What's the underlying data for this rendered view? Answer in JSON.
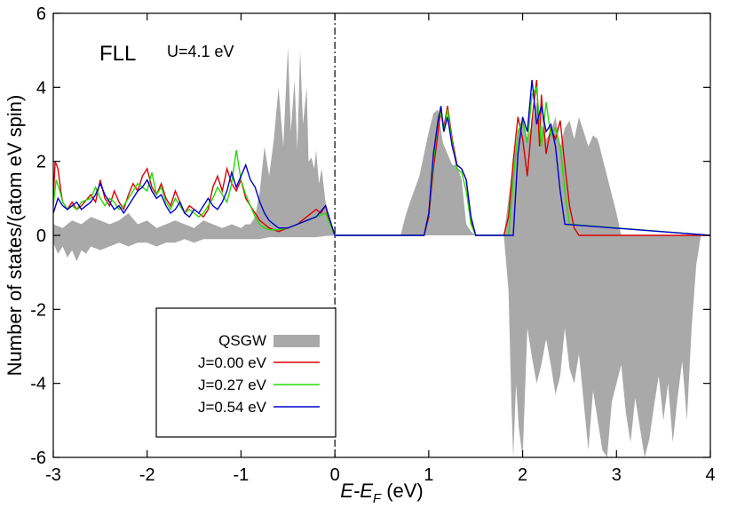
{
  "chart_data": {
    "type": "line",
    "title": "",
    "xlabel_main": "E-E",
    "xlabel_sub": "F",
    "xlabel_unit": " (eV)",
    "ylabel": "Number of states/(atom eV spin)",
    "xlim": [
      -3,
      4
    ],
    "ylim": [
      -6,
      6
    ],
    "xticks": [
      -3,
      -2,
      -1,
      0,
      1,
      2,
      3,
      4
    ],
    "yticks": [
      -6,
      -4,
      -2,
      0,
      2,
      4,
      6
    ],
    "annotations": {
      "method": "FLL",
      "param": "U=4.1 eV"
    },
    "fermi_line_x": 0,
    "legend_position": "bottom-left",
    "series": [
      {
        "name": "QSGW",
        "kind": "area",
        "color": "#a9a9a9",
        "upper": {
          "x": [
            -3.0,
            -2.9,
            -2.8,
            -2.7,
            -2.6,
            -2.5,
            -2.4,
            -2.3,
            -2.2,
            -2.1,
            -2.0,
            -1.9,
            -1.8,
            -1.7,
            -1.6,
            -1.5,
            -1.4,
            -1.3,
            -1.2,
            -1.1,
            -1.0,
            -0.95,
            -0.9,
            -0.85,
            -0.8,
            -0.75,
            -0.7,
            -0.65,
            -0.6,
            -0.55,
            -0.5,
            -0.47,
            -0.43,
            -0.4,
            -0.37,
            -0.34,
            -0.3,
            -0.28,
            -0.25,
            -0.22,
            -0.2,
            -0.17,
            -0.14,
            -0.1,
            -0.05,
            0.0,
            0.7,
            0.75,
            0.8,
            0.9,
            1.0,
            1.05,
            1.1,
            1.15,
            1.2,
            1.25,
            1.3,
            1.35,
            1.4,
            1.45,
            1.5,
            1.8,
            1.85,
            1.9,
            1.95,
            2.0,
            2.05,
            2.1,
            2.15,
            2.2,
            2.25,
            2.3,
            2.35,
            2.4,
            2.45,
            2.5,
            2.55,
            2.6,
            2.65,
            2.7,
            2.75,
            2.8,
            2.85,
            2.9,
            2.95,
            3.0,
            3.05,
            4.0
          ],
          "y": [
            0.3,
            0.2,
            0.4,
            0.3,
            0.5,
            0.4,
            0.3,
            0.4,
            0.6,
            0.3,
            0.4,
            0.2,
            0.3,
            0.4,
            0.3,
            0.2,
            0.4,
            0.3,
            0.2,
            0.3,
            0.2,
            0.3,
            0.3,
            0.5,
            1.2,
            2.4,
            1.6,
            2.6,
            4.0,
            2.4,
            5.1,
            2.8,
            4.2,
            2.3,
            5.0,
            3.0,
            4.0,
            2.0,
            2.1,
            1.8,
            2.3,
            1.4,
            1.8,
            0.9,
            0.4,
            0.0,
            0.0,
            0.5,
            0.9,
            1.6,
            2.8,
            3.3,
            3.4,
            2.5,
            2.2,
            1.9,
            1.9,
            1.5,
            0.3,
            0.1,
            0.0,
            0.0,
            1.0,
            2.0,
            2.8,
            3.2,
            2.6,
            3.0,
            3.6,
            3.0,
            2.6,
            2.8,
            3.2,
            2.4,
            2.9,
            3.1,
            2.6,
            3.2,
            2.8,
            2.4,
            2.7,
            2.6,
            2.1,
            1.6,
            1.1,
            0.6,
            0.0,
            0.0
          ]
        },
        "lower": {
          "x": [
            -3.0,
            -2.95,
            -2.9,
            -2.85,
            -2.8,
            -2.75,
            -2.7,
            -2.65,
            -2.6,
            -2.5,
            -2.4,
            -2.3,
            -2.2,
            -2.1,
            -2.0,
            -1.9,
            -1.8,
            -1.7,
            -1.6,
            -1.5,
            -1.4,
            -1.3,
            -1.2,
            -1.1,
            -1.0,
            -0.9,
            -0.8,
            -0.7,
            -0.6,
            -0.5,
            -0.4,
            -0.3,
            -0.2,
            -0.1,
            0.0,
            1.8,
            1.85,
            1.88,
            1.9,
            1.93,
            1.96,
            2.0,
            2.05,
            2.1,
            2.15,
            2.2,
            2.25,
            2.3,
            2.35,
            2.4,
            2.45,
            2.5,
            2.55,
            2.6,
            2.65,
            2.7,
            2.75,
            2.8,
            2.85,
            2.9,
            2.95,
            3.0,
            3.05,
            3.1,
            3.15,
            3.2,
            3.25,
            3.3,
            3.35,
            3.4,
            3.45,
            3.5,
            3.55,
            3.6,
            3.65,
            3.7,
            3.75,
            3.8,
            3.85,
            3.9,
            4.0
          ],
          "y": [
            -0.2,
            -0.5,
            -0.3,
            -0.6,
            -0.4,
            -0.7,
            -0.4,
            -0.5,
            -0.3,
            -0.4,
            -0.3,
            -0.2,
            -0.3,
            -0.2,
            -0.2,
            -0.3,
            -0.2,
            -0.2,
            -0.1,
            -0.2,
            -0.1,
            -0.1,
            -0.1,
            -0.1,
            -0.1,
            -0.1,
            -0.1,
            -0.05,
            -0.05,
            -0.05,
            -0.05,
            -0.05,
            -0.05,
            -0.02,
            0.0,
            0.0,
            -1.5,
            -4.5,
            -6.0,
            -4.0,
            -5.2,
            -6.0,
            -2.5,
            -3.3,
            -4.0,
            -3.5,
            -2.8,
            -3.5,
            -4.3,
            -3.8,
            -2.5,
            -3.6,
            -4.0,
            -3.2,
            -4.5,
            -5.8,
            -4.2,
            -5.0,
            -5.8,
            -6.0,
            -4.5,
            -4.0,
            -3.5,
            -4.8,
            -5.6,
            -4.4,
            -5.2,
            -6.0,
            -5.5,
            -4.6,
            -3.8,
            -5.0,
            -4.0,
            -5.6,
            -4.4,
            -3.4,
            -5.0,
            -2.5,
            -0.8,
            0.0,
            0.0
          ]
        }
      },
      {
        "name": "J=0.00 eV",
        "kind": "line",
        "color": "#dd0000",
        "x": [
          -3.0,
          -2.98,
          -2.95,
          -2.92,
          -2.9,
          -2.85,
          -2.8,
          -2.75,
          -2.7,
          -2.6,
          -2.55,
          -2.5,
          -2.45,
          -2.4,
          -2.35,
          -2.3,
          -2.25,
          -2.2,
          -2.15,
          -2.1,
          -2.05,
          -2.0,
          -1.95,
          -1.9,
          -1.85,
          -1.8,
          -1.75,
          -1.7,
          -1.65,
          -1.6,
          -1.55,
          -1.5,
          -1.45,
          -1.4,
          -1.35,
          -1.3,
          -1.25,
          -1.2,
          -1.15,
          -1.1,
          -1.05,
          -1.0,
          -0.95,
          -0.9,
          -0.85,
          -0.8,
          -0.75,
          -0.7,
          -0.65,
          -0.6,
          -0.55,
          -0.5,
          -0.45,
          -0.4,
          -0.35,
          -0.3,
          -0.25,
          -0.2,
          -0.15,
          -0.1,
          -0.05,
          0.0,
          0.95,
          1.0,
          1.05,
          1.1,
          1.13,
          1.16,
          1.2,
          1.25,
          1.3,
          1.35,
          1.4,
          1.45,
          1.5,
          1.8,
          1.85,
          1.9,
          1.95,
          2.0,
          2.05,
          2.1,
          2.15,
          2.18,
          2.2,
          2.25,
          2.3,
          2.35,
          2.4,
          2.45,
          2.5,
          2.55,
          2.6,
          4.0
        ],
        "y": [
          1.0,
          2.0,
          1.8,
          1.2,
          0.9,
          0.7,
          0.9,
          0.7,
          0.8,
          1.1,
          0.9,
          1.5,
          1.0,
          0.8,
          1.2,
          0.9,
          0.7,
          1.1,
          1.4,
          1.2,
          1.6,
          1.8,
          1.3,
          1.1,
          1.4,
          1.0,
          0.8,
          1.2,
          0.9,
          0.6,
          0.8,
          0.7,
          0.6,
          0.5,
          0.7,
          1.3,
          1.6,
          1.2,
          1.8,
          1.4,
          1.2,
          1.5,
          1.0,
          0.8,
          0.6,
          0.4,
          0.3,
          0.2,
          0.15,
          0.1,
          0.15,
          0.2,
          0.25,
          0.3,
          0.4,
          0.5,
          0.6,
          0.7,
          0.6,
          0.8,
          0.3,
          0.0,
          0.0,
          0.5,
          1.8,
          2.8,
          3.4,
          2.9,
          3.5,
          2.6,
          1.9,
          1.8,
          1.5,
          0.4,
          0.0,
          0.0,
          0.5,
          2.0,
          3.2,
          2.6,
          1.6,
          3.1,
          4.2,
          2.4,
          3.8,
          2.2,
          2.9,
          2.6,
          3.1,
          1.9,
          0.8,
          0.2,
          0.0,
          0.0
        ]
      },
      {
        "name": "J=0.27 eV",
        "kind": "line",
        "color": "#22dd00",
        "x": [
          -3.0,
          -2.97,
          -2.93,
          -2.9,
          -2.85,
          -2.8,
          -2.75,
          -2.7,
          -2.6,
          -2.55,
          -2.5,
          -2.45,
          -2.4,
          -2.35,
          -2.3,
          -2.25,
          -2.2,
          -2.15,
          -2.1,
          -2.05,
          -2.0,
          -1.95,
          -1.9,
          -1.85,
          -1.8,
          -1.75,
          -1.7,
          -1.65,
          -1.6,
          -1.55,
          -1.5,
          -1.45,
          -1.4,
          -1.35,
          -1.3,
          -1.25,
          -1.2,
          -1.15,
          -1.1,
          -1.05,
          -1.0,
          -0.95,
          -0.9,
          -0.85,
          -0.8,
          -0.75,
          -0.7,
          -0.6,
          -0.5,
          -0.4,
          -0.3,
          -0.2,
          -0.1,
          0.0,
          0.95,
          1.0,
          1.05,
          1.1,
          1.13,
          1.16,
          1.2,
          1.25,
          1.3,
          1.35,
          1.4,
          1.45,
          1.5,
          1.85,
          1.9,
          1.95,
          2.0,
          2.05,
          2.1,
          2.15,
          2.2,
          2.25,
          2.3,
          2.35,
          2.4,
          2.45,
          2.5,
          4.0
        ],
        "y": [
          0.8,
          1.5,
          1.2,
          0.9,
          0.7,
          0.8,
          0.7,
          0.9,
          1.0,
          1.3,
          1.0,
          0.8,
          1.0,
          0.9,
          0.7,
          0.8,
          1.0,
          1.2,
          1.4,
          1.3,
          1.2,
          1.7,
          1.1,
          1.3,
          0.9,
          0.7,
          1.0,
          0.8,
          0.6,
          0.7,
          0.6,
          0.5,
          0.6,
          0.8,
          1.0,
          1.3,
          1.1,
          0.9,
          1.4,
          2.3,
          1.5,
          1.1,
          0.8,
          0.5,
          0.3,
          0.2,
          0.15,
          0.15,
          0.2,
          0.3,
          0.4,
          0.5,
          0.6,
          0.0,
          0.0,
          0.6,
          2.0,
          3.2,
          3.3,
          2.8,
          3.4,
          2.5,
          1.8,
          1.7,
          1.2,
          0.3,
          0.0,
          0.0,
          1.5,
          2.8,
          3.1,
          2.5,
          3.8,
          4.0,
          2.4,
          3.6,
          2.7,
          2.9,
          2.4,
          1.2,
          0.3,
          0.0
        ]
      },
      {
        "name": "J=0.54 eV",
        "kind": "line",
        "color": "#0000cc",
        "x": [
          -3.0,
          -2.95,
          -2.9,
          -2.85,
          -2.8,
          -2.75,
          -2.7,
          -2.65,
          -2.6,
          -2.55,
          -2.5,
          -2.45,
          -2.4,
          -2.35,
          -2.3,
          -2.25,
          -2.2,
          -2.15,
          -2.1,
          -2.05,
          -2.0,
          -1.95,
          -1.9,
          -1.85,
          -1.8,
          -1.75,
          -1.7,
          -1.65,
          -1.6,
          -1.55,
          -1.5,
          -1.45,
          -1.4,
          -1.35,
          -1.3,
          -1.25,
          -1.2,
          -1.15,
          -1.1,
          -1.05,
          -1.0,
          -0.95,
          -0.9,
          -0.85,
          -0.8,
          -0.75,
          -0.7,
          -0.6,
          -0.5,
          -0.4,
          -0.3,
          -0.2,
          -0.1,
          0.0,
          0.95,
          1.0,
          1.05,
          1.1,
          1.13,
          1.16,
          1.2,
          1.25,
          1.3,
          1.35,
          1.4,
          1.45,
          1.5,
          1.9,
          1.95,
          2.0,
          2.05,
          2.1,
          2.15,
          2.2,
          2.25,
          2.3,
          2.35,
          2.4,
          2.45,
          4.0
        ],
        "y": [
          0.6,
          1.0,
          0.8,
          0.7,
          0.8,
          0.9,
          0.7,
          0.8,
          0.9,
          1.1,
          1.4,
          1.1,
          0.9,
          0.7,
          0.8,
          0.6,
          0.8,
          1.0,
          1.2,
          1.3,
          1.5,
          1.2,
          1.0,
          1.1,
          0.8,
          0.6,
          0.7,
          0.9,
          0.6,
          0.5,
          0.7,
          0.6,
          0.8,
          1.0,
          0.8,
          0.7,
          0.9,
          1.2,
          1.7,
          1.3,
          1.6,
          1.9,
          1.5,
          1.3,
          0.9,
          0.6,
          0.4,
          0.2,
          0.2,
          0.3,
          0.4,
          0.5,
          0.8,
          0.0,
          0.0,
          0.6,
          2.2,
          3.1,
          3.5,
          2.8,
          3.2,
          2.4,
          1.9,
          1.8,
          1.5,
          0.5,
          0.0,
          0.0,
          2.2,
          3.2,
          2.8,
          4.2,
          3.0,
          3.5,
          2.8,
          3.0,
          2.4,
          1.2,
          0.3,
          0.0
        ]
      }
    ]
  }
}
